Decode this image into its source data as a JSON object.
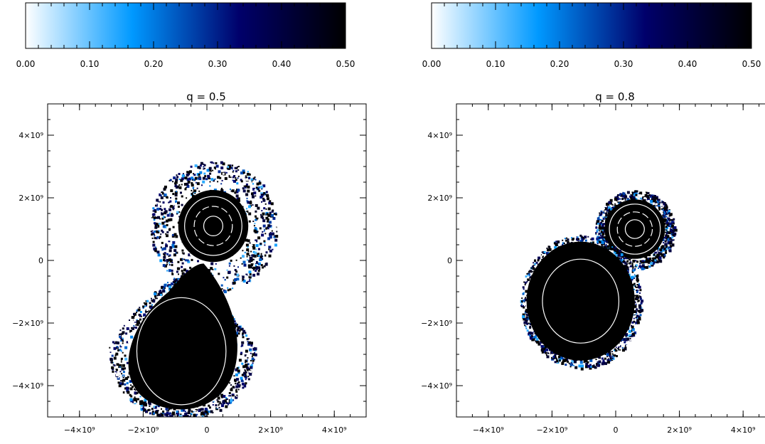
{
  "chart_data": [
    {
      "type": "heatmap",
      "title": "q = 0.5",
      "xlabel": "",
      "ylabel": "",
      "xlim": [
        -5000000000,
        5000000000
      ],
      "ylim": [
        -5000000000,
        5000000000
      ],
      "x_ticks": [
        {
          "value": -4000000000,
          "label": "−4×10⁹"
        },
        {
          "value": -2000000000,
          "label": "−2×10⁹"
        },
        {
          "value": 0,
          "label": "0"
        },
        {
          "value": 2000000000,
          "label": "2×10⁹"
        },
        {
          "value": 4000000000,
          "label": "4×10⁹"
        }
      ],
      "y_ticks": [
        {
          "value": 4000000000,
          "label": "4×10⁹"
        },
        {
          "value": 2000000000,
          "label": "2×10⁹"
        },
        {
          "value": 0,
          "label": "0"
        },
        {
          "value": -2000000000,
          "label": "−2×10⁹"
        },
        {
          "value": -4000000000,
          "label": "−4×10⁹"
        }
      ],
      "grid": false,
      "colorbar": {
        "range": [
          0.0,
          0.5
        ],
        "ticks": [
          "0.00",
          "0.10",
          "0.20",
          "0.30",
          "0.40",
          "0.50"
        ],
        "colors": [
          "#ffffff",
          "#0099ff",
          "#00006b",
          "#000000"
        ]
      },
      "bodies": [
        {
          "cx": 200000000,
          "cy": 1100000000,
          "rx": 1100000000,
          "ry": 1150000000,
          "halo": 2000000000,
          "contours": [
            300000000,
            600000000,
            900000000
          ],
          "dashed": [
            1
          ]
        },
        {
          "cx": -800000000,
          "cy": -2800000000,
          "rx": 2000000000,
          "ry": 2000000000,
          "halo": 2300000000,
          "contours": [
            1400000000
          ],
          "dashed": [],
          "teardrop": true
        }
      ]
    },
    {
      "type": "heatmap",
      "title": "q = 0.8",
      "xlabel": "",
      "ylabel": "",
      "xlim": [
        -5000000000,
        5000000000
      ],
      "ylim": [
        -5000000000,
        5000000000
      ],
      "x_ticks": [
        {
          "value": -4000000000,
          "label": "−4×10⁹"
        },
        {
          "value": -2000000000,
          "label": "−2×10⁹"
        },
        {
          "value": 0,
          "label": "0"
        },
        {
          "value": 2000000000,
          "label": "2×10⁹"
        },
        {
          "value": 4000000000,
          "label": "4×10⁹"
        }
      ],
      "y_ticks": [
        {
          "value": 4000000000,
          "label": "4×10⁹"
        },
        {
          "value": 2000000000,
          "label": "2×10⁹"
        },
        {
          "value": 0,
          "label": "0"
        },
        {
          "value": -2000000000,
          "label": "−2×10⁹"
        },
        {
          "value": -4000000000,
          "label": "−4×10⁹"
        }
      ],
      "grid": false,
      "colorbar": {
        "range": [
          0.0,
          0.5
        ],
        "ticks": [
          "0.00",
          "0.10",
          "0.20",
          "0.30",
          "0.40",
          "0.50"
        ],
        "colors": [
          "#ffffff",
          "#0099ff",
          "#00006b",
          "#000000"
        ]
      },
      "bodies": [
        {
          "cx": 600000000,
          "cy": 1000000000,
          "rx": 950000000,
          "ry": 950000000,
          "halo": 1250000000,
          "contours": [
            300000000,
            550000000,
            800000000
          ],
          "dashed": [
            1
          ]
        },
        {
          "cx": -1100000000,
          "cy": -1300000000,
          "rx": 1700000000,
          "ry": 1900000000,
          "halo": 1900000000,
          "contours": [
            1200000000
          ],
          "dashed": []
        }
      ]
    }
  ]
}
